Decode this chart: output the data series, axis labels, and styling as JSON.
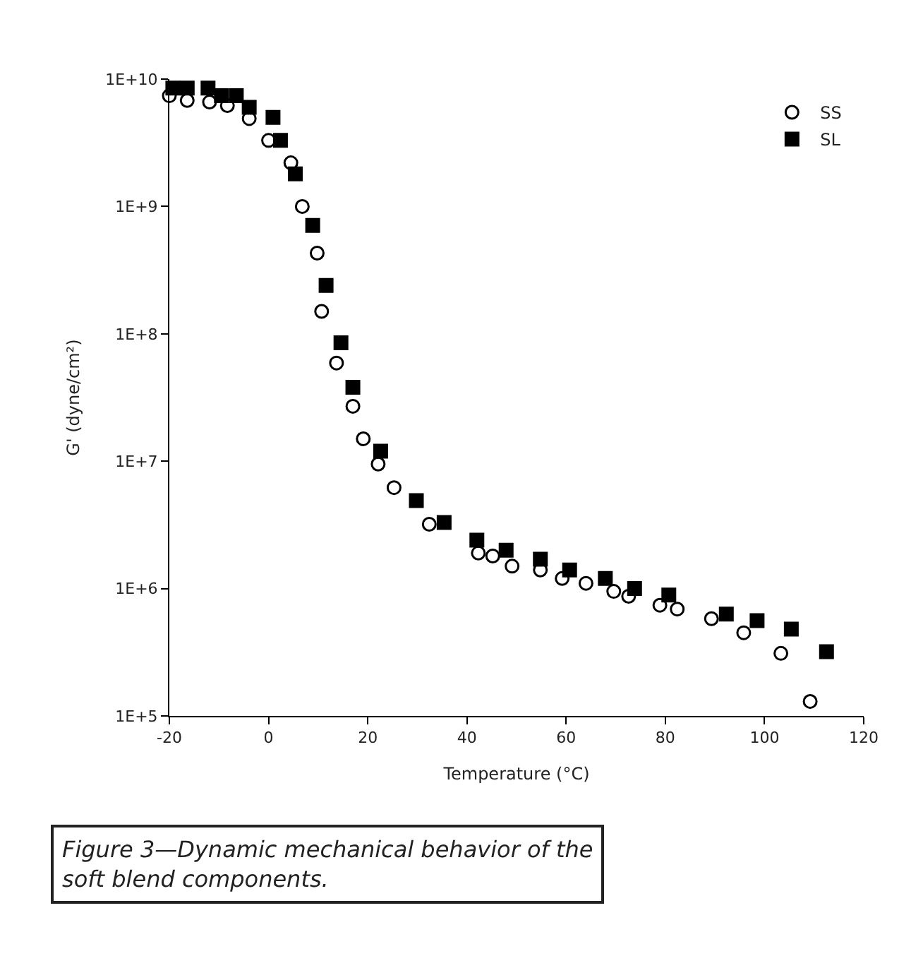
{
  "chart_data": {
    "type": "scatter",
    "xlabel": "Temperature (°C)",
    "ylabel": "G' (dyne/cm²)",
    "xlim": [
      -20,
      120
    ],
    "xticks": [
      -20,
      0,
      20,
      40,
      60,
      80,
      100,
      120
    ],
    "ylim": [
      100000,
      10000000000
    ],
    "yticks": [
      {
        "value": 10000000000,
        "label": "1E+10"
      },
      {
        "value": 1000000000,
        "label": "1E+9"
      },
      {
        "value": 100000000,
        "label": "1E+8"
      },
      {
        "value": 10000000,
        "label": "1E+7"
      },
      {
        "value": 1000000,
        "label": "1E+6"
      },
      {
        "value": 100000,
        "label": "1E+5"
      }
    ],
    "log": "y",
    "legend": "top right",
    "series": [
      {
        "name": "SS",
        "color": "#000000",
        "marker": "circle",
        "x": [
          -20,
          -16.4,
          -11.9,
          -8.3,
          -3.9,
          0,
          4.5,
          6.8,
          9.8,
          10.7,
          13.7,
          17.0,
          19.1,
          22.1,
          25.3,
          32.4,
          42.3,
          45.2,
          49.1,
          54.8,
          59.2,
          64.0,
          69.6,
          72.6,
          78.9,
          82.4,
          89.3,
          95.8,
          103.3,
          109.2
        ],
        "values": [
          7400000000,
          6800000000,
          6600000000,
          6200000000,
          4900000000,
          3300000000,
          2200000000,
          1000000000,
          430000000,
          150000000,
          59000000,
          27000000,
          15000000,
          9500000,
          6200000,
          3200000,
          1900000,
          1800000,
          1500000,
          1400000,
          1200000,
          1100000,
          950000,
          870000,
          740000,
          690000,
          580000,
          450000,
          310000,
          130000
        ]
      },
      {
        "name": "SL",
        "color": "#000000",
        "marker": "square",
        "x": [
          -19.3,
          -16.4,
          -12.2,
          -9.5,
          -6.5,
          -3.9,
          0.9,
          2.4,
          5.4,
          8.9,
          11.6,
          14.6,
          17.0,
          22.6,
          29.8,
          35.4,
          42.0,
          47.9,
          54.8,
          60.7,
          67.9,
          73.8,
          80.7,
          92.3,
          98.5,
          105.4,
          112.5
        ],
        "values": [
          8500000000,
          8500000000,
          8500000000,
          7400000000,
          7400000000,
          6000000000,
          5000000000,
          3300000000,
          1800000000,
          710000000,
          240000000,
          85000000,
          38000000,
          12000000,
          4900000,
          3300000,
          2400000,
          2000000,
          1700000,
          1400000,
          1200000,
          1000000,
          890000,
          630000,
          560000,
          480000,
          320000
        ]
      }
    ],
    "annotations": [
      "Figure 3—Dynamic mechanical behavior of the soft blend components."
    ]
  }
}
